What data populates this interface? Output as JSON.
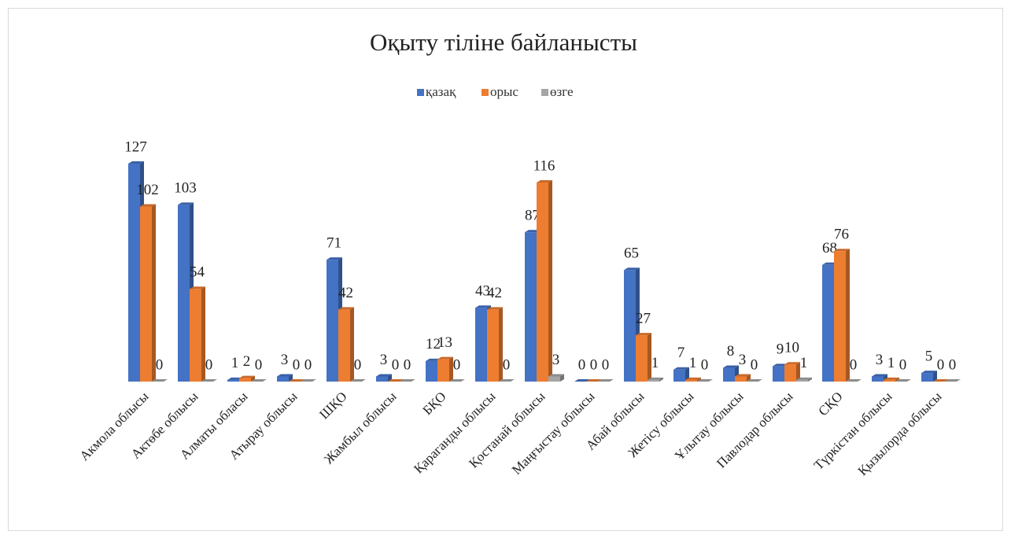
{
  "chart_data": {
    "type": "bar3d",
    "title": "Оқыту тіліне байланысты",
    "categories": [
      "Акмола облысы",
      "Актөбе облысы",
      "Алматы обласы",
      "Атырау облысы",
      "ШҚО",
      "Жамбыл облысы",
      "БҚО",
      "Қараганды облысы",
      "Қостанай облысы",
      "Маңғыстау облысы",
      "Абай облысы",
      "Жетісу облысы",
      "Ұлытау облысы",
      "Павлодар облысы",
      "СҚО",
      "Түркістан облысы",
      "Қызылорда облысы"
    ],
    "series": [
      {
        "name": "қазақ",
        "color": "#4472c4",
        "values": [
          127,
          103,
          1,
          3,
          71,
          3,
          12,
          43,
          87,
          0,
          65,
          7,
          8,
          9,
          68,
          3,
          5
        ]
      },
      {
        "name": "орыс",
        "color": "#ed7d31",
        "values": [
          102,
          54,
          2,
          0,
          42,
          0,
          13,
          42,
          116,
          0,
          27,
          1,
          3,
          10,
          76,
          1,
          0
        ]
      },
      {
        "name": "өзге",
        "color": "#a5a5a5",
        "values": [
          0,
          0,
          0,
          0,
          0,
          0,
          0,
          0,
          3,
          0,
          1,
          0,
          0,
          1,
          0,
          0,
          0
        ]
      }
    ],
    "legend": "top"
  }
}
